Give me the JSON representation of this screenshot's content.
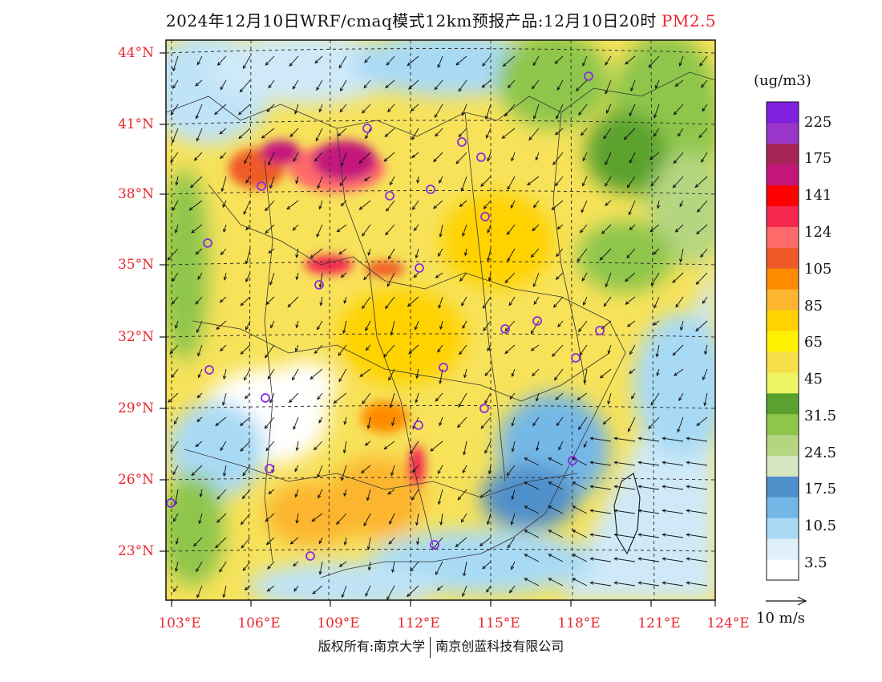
{
  "title": {
    "main": "2024年12月10日WRF/cmaq模式12km预报产品:12月10日20时",
    "pollutant": "PM2.5"
  },
  "map": {
    "latitude_labels": [
      "44°N",
      "41°N",
      "38°N",
      "35°N",
      "32°N",
      "29°N",
      "26°N",
      "23°N"
    ],
    "longitude_labels": [
      "103°E",
      "106°E",
      "109°E",
      "112°E",
      "115°E",
      "118°E",
      "121°E",
      "124°E"
    ],
    "extent": {
      "lon_min": 103,
      "lon_max": 124,
      "lat_min": 21,
      "lat_max": 44.5
    },
    "gridlines": "dashed",
    "city_marker_color": "#8a2be2"
  },
  "colorbar": {
    "unit": "(ug/m3)",
    "labels": [
      "225",
      "175",
      "141",
      "124",
      "105",
      "85",
      "65",
      "45",
      "31.5",
      "24.5",
      "17.5",
      "10.5",
      "3.5"
    ],
    "colors": [
      "#ffffff",
      "#dff0fb",
      "#a9daf5",
      "#74b7e6",
      "#4f8fca",
      "#d6e6c0",
      "#b5d680",
      "#8ec64b",
      "#5aa12f",
      "#eef462",
      "#f7e14a",
      "#fff200",
      "#ffd200",
      "#fcb52e",
      "#ff8c00",
      "#f05a28",
      "#ff6b6b",
      "#f4284f",
      "#ff0000",
      "#c4157b",
      "#a72456",
      "#9a35c9",
      "#7f1fe0"
    ]
  },
  "wind_reference": {
    "label": "10 m/s"
  },
  "footer": {
    "left": "版权所有:南京大学",
    "right": "南京创蓝科技有限公司"
  }
}
